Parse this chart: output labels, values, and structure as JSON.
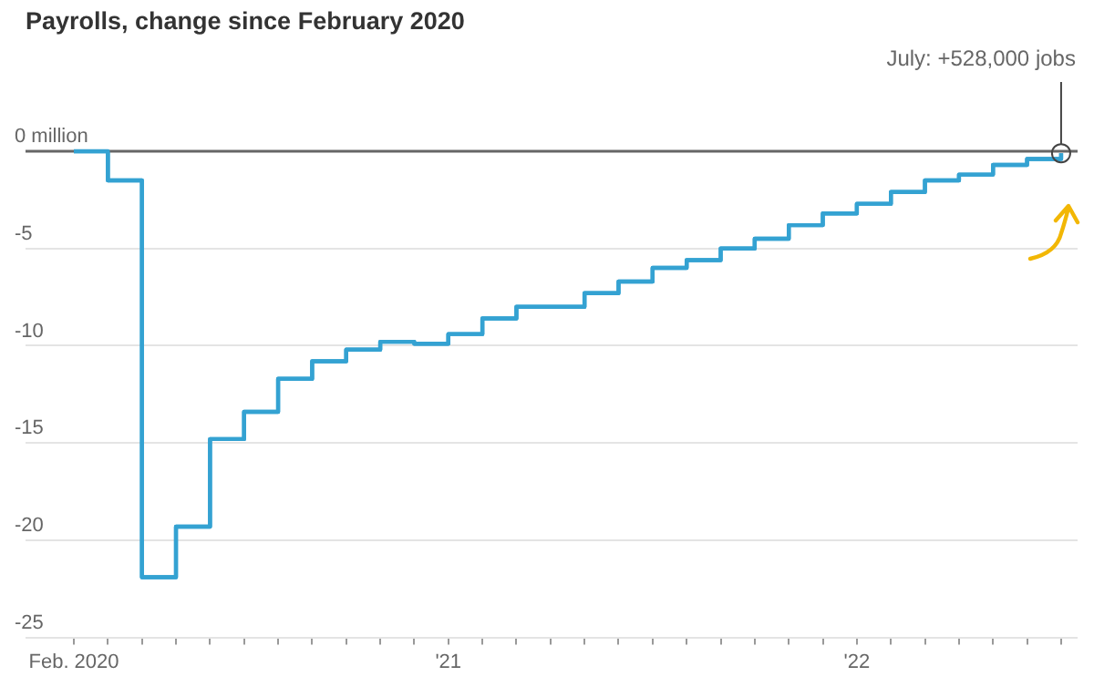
{
  "chart_data": {
    "type": "step",
    "title": "Payrolls, change since February 2020",
    "x": [
      "2020-02",
      "2020-03",
      "2020-04",
      "2020-05",
      "2020-06",
      "2020-07",
      "2020-08",
      "2020-09",
      "2020-10",
      "2020-11",
      "2020-12",
      "2021-01",
      "2021-02",
      "2021-03",
      "2021-04",
      "2021-05",
      "2021-06",
      "2021-07",
      "2021-08",
      "2021-09",
      "2021-10",
      "2021-11",
      "2021-12",
      "2022-01",
      "2022-02",
      "2022-03",
      "2022-04",
      "2022-05",
      "2022-06",
      "2022-07"
    ],
    "series": [
      {
        "color": "#34a2d2",
        "values": [
          0,
          -1.5,
          -21.9,
          -19.3,
          -14.8,
          -13.4,
          -11.7,
          -10.8,
          -10.2,
          -9.8,
          -9.9,
          -9.4,
          -8.6,
          -8.0,
          -8.0,
          -7.3,
          -6.7,
          -6.0,
          -5.6,
          -5.0,
          -4.5,
          -3.8,
          -3.2,
          -2.7,
          -2.1,
          -1.5,
          -1.2,
          -0.7,
          -0.4,
          -0.1
        ]
      }
    ],
    "xlim": [
      "2019-12-19",
      "2022-07-16"
    ],
    "xticks": [
      {
        "value": "2020-02",
        "label": "Feb. 2020"
      },
      {
        "value": "2020-03",
        "label": null
      },
      {
        "value": "2020-04",
        "label": null
      },
      {
        "value": "2020-05",
        "label": null
      },
      {
        "value": "2020-06",
        "label": null
      },
      {
        "value": "2020-07",
        "label": null
      },
      {
        "value": "2020-08",
        "label": null
      },
      {
        "value": "2020-09",
        "label": null
      },
      {
        "value": "2020-10",
        "label": null
      },
      {
        "value": "2020-11",
        "label": null
      },
      {
        "value": "2020-12",
        "label": null
      },
      {
        "value": "2021-01",
        "label": "'21"
      },
      {
        "value": "2021-02",
        "label": null
      },
      {
        "value": "2021-03",
        "label": null
      },
      {
        "value": "2021-04",
        "label": null
      },
      {
        "value": "2021-05",
        "label": null
      },
      {
        "value": "2021-06",
        "label": null
      },
      {
        "value": "2021-07",
        "label": null
      },
      {
        "value": "2021-08",
        "label": null
      },
      {
        "value": "2021-09",
        "label": null
      },
      {
        "value": "2021-10",
        "label": null
      },
      {
        "value": "2021-11",
        "label": null
      },
      {
        "value": "2021-12",
        "label": null
      },
      {
        "value": "2022-01",
        "label": "'22"
      },
      {
        "value": "2022-02",
        "label": null
      },
      {
        "value": "2022-03",
        "label": null
      },
      {
        "value": "2022-04",
        "label": null
      },
      {
        "value": "2022-05",
        "label": null
      },
      {
        "value": "2022-06",
        "label": null
      },
      {
        "value": "2022-07",
        "label": null
      }
    ],
    "ylim": [
      -25,
      0
    ],
    "yticks": [
      {
        "value": 0,
        "label": "0 million"
      },
      -5,
      -10,
      -15,
      -20,
      -25
    ],
    "grid": "y",
    "legend": false,
    "marker": "none",
    "line_style": "solid",
    "ref_lines": [
      {
        "axis": "y",
        "value": 0,
        "color": "#666666"
      }
    ],
    "annotations": [
      {
        "text": "July: +528,000 jobs",
        "x": "2022-07",
        "y": -0.1
      }
    ]
  }
}
